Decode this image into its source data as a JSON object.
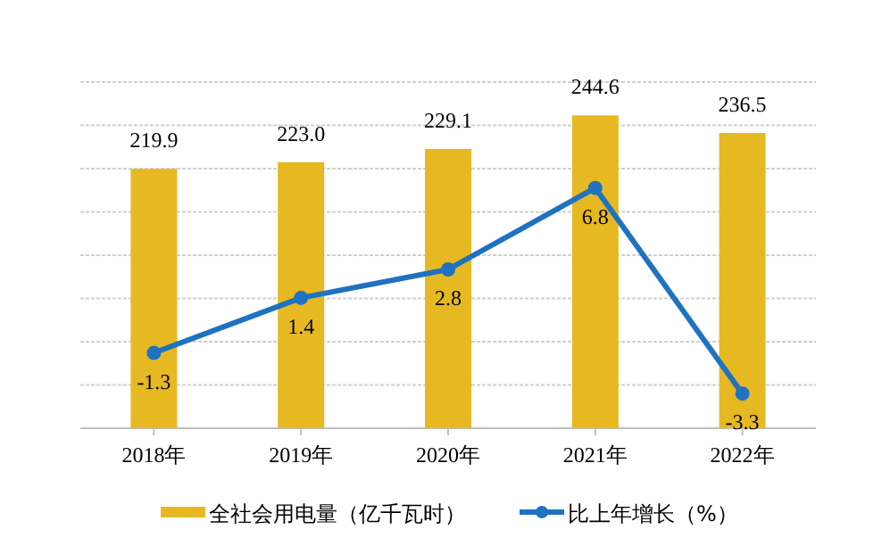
{
  "chart_data": {
    "type": "bar",
    "categories": [
      "2018年",
      "2019年",
      "2020年",
      "2021年",
      "2022年"
    ],
    "series": [
      {
        "name": "全社会用电量（亿千瓦时）",
        "color": "#e6b923",
        "values": [
          219.9,
          223.0,
          229.1,
          244.6,
          236.5
        ],
        "value_labels": [
          "219.9",
          "223.0",
          "229.1",
          "244.6",
          "236.5"
        ]
      },
      {
        "name": "比上年增长（%）",
        "type": "line",
        "axis": "y2",
        "color": "#1f72c0",
        "marker": "circle",
        "values": [
          -1.3,
          1.4,
          2.8,
          6.8,
          -3.3
        ],
        "value_labels": [
          "-1.3",
          "1.4",
          "2.8",
          "6.8",
          "-3.3"
        ]
      }
    ],
    "ylim": [
      100,
      260
    ],
    "yticks": [
      {
        "value": 100,
        "label": null
      },
      {
        "value": 120,
        "label": null
      },
      {
        "value": 140,
        "label": null
      },
      {
        "value": 160,
        "label": null
      },
      {
        "value": 180,
        "label": null
      },
      {
        "value": 200,
        "label": null
      },
      {
        "value": 220,
        "label": null
      },
      {
        "value": 240,
        "label": null
      },
      {
        "value": 260,
        "label": null
      }
    ],
    "y2lim": [
      -5,
      12
    ],
    "grid": "y",
    "tick_labels": "x",
    "legend": "bottom"
  }
}
